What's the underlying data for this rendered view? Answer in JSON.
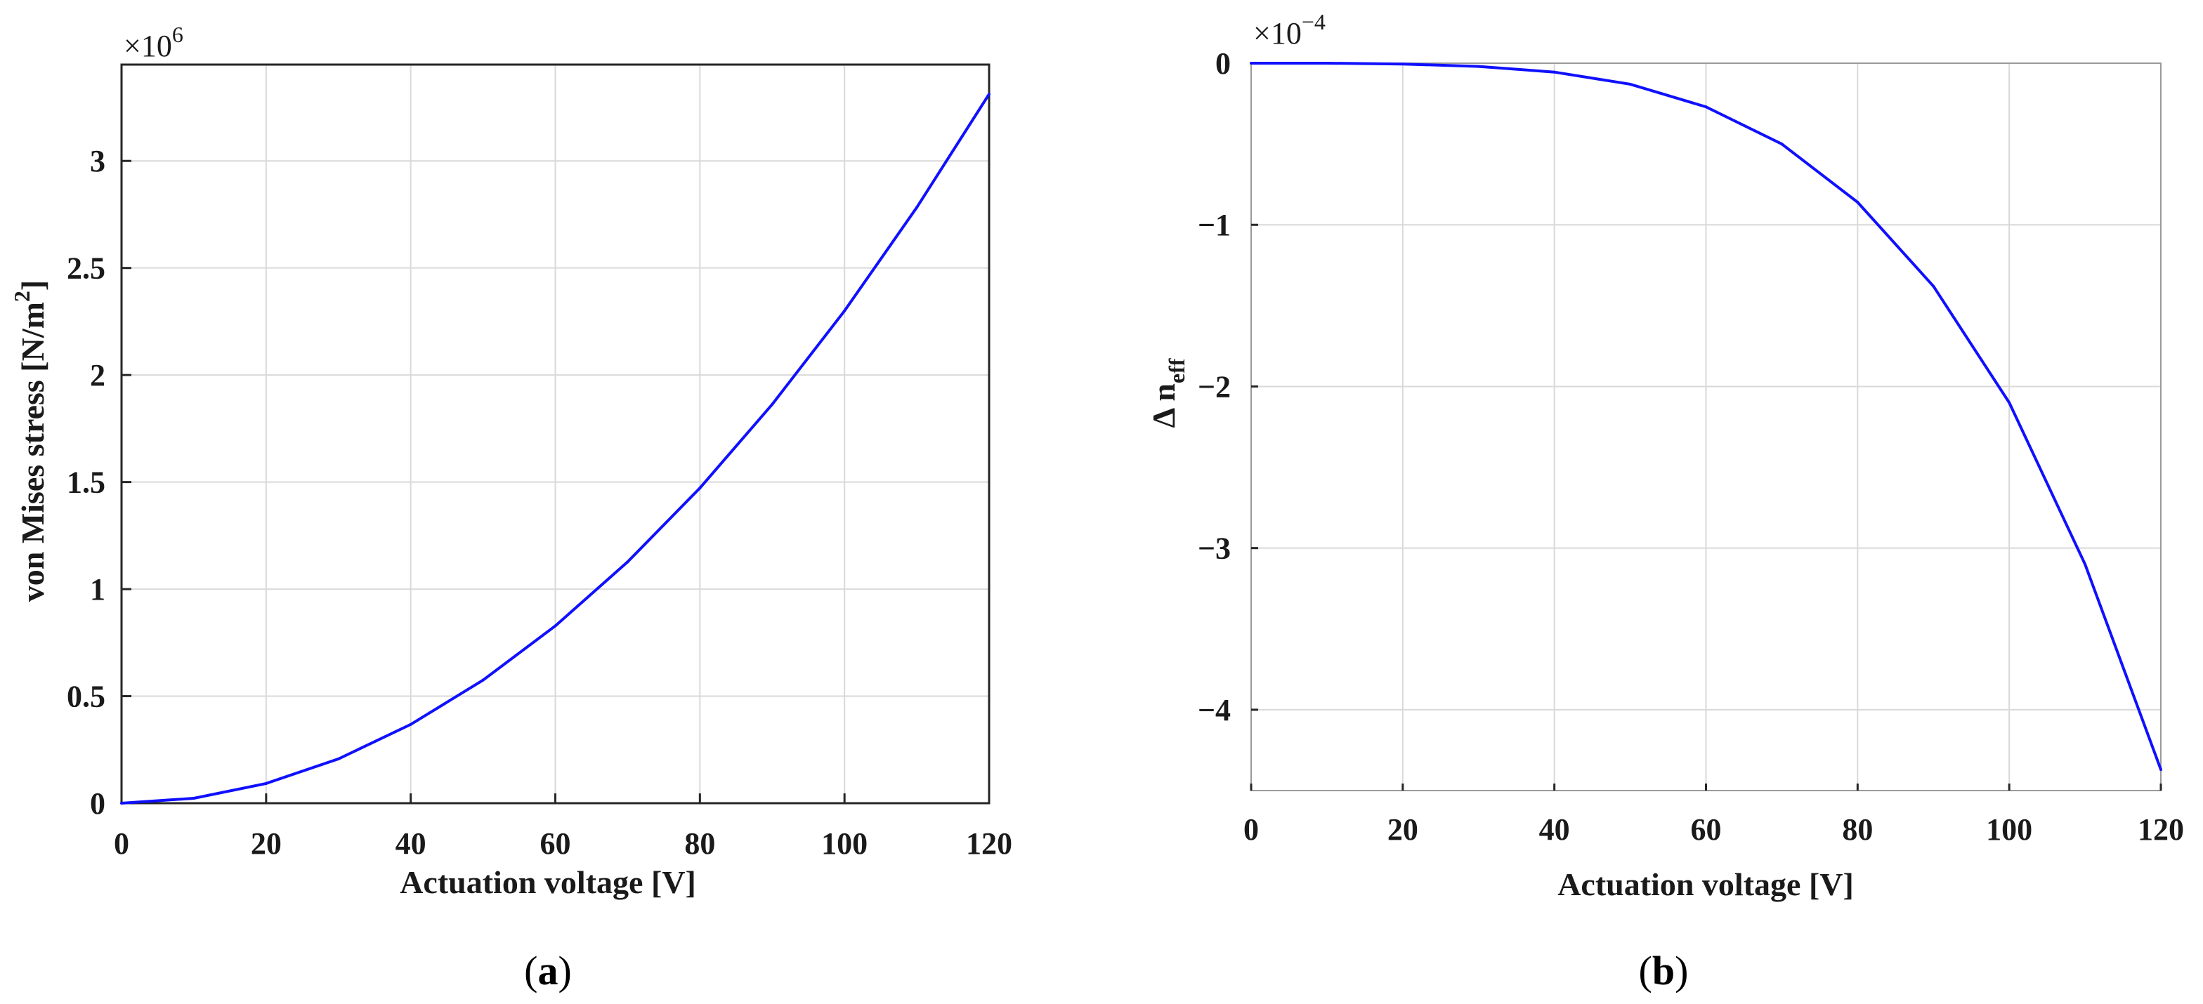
{
  "colors": {
    "series": "#1010ff",
    "axis": "#262626",
    "grid": "#d9d9d9"
  },
  "chart_data": [
    {
      "type": "line",
      "panel_label": "a",
      "xlabel": "Actuation voltage [V]",
      "ylabel_main": "von Mises stress [N/m",
      "ylabel_sup": "2",
      "ylabel_end": "]",
      "exponent_label": {
        "base": "×10",
        "power": "6"
      },
      "xlim": [
        0,
        120
      ],
      "ylim": [
        0,
        3.45
      ],
      "xticks": [
        0,
        20,
        40,
        60,
        80,
        100,
        120
      ],
      "xtick_labels": [
        "0",
        "20",
        "40",
        "60",
        "80",
        "100",
        "120"
      ],
      "yticks": [
        0,
        0.5,
        1,
        1.5,
        2,
        2.5,
        3
      ],
      "ytick_labels": [
        "0",
        "0.5",
        "1",
        "1.5",
        "2",
        "2.5",
        "3"
      ],
      "grid": true,
      "series": [
        {
          "x": [
            0,
            10,
            20,
            30,
            40,
            50,
            60,
            70,
            80,
            90,
            100,
            110,
            120
          ],
          "y": [
            0,
            0.023,
            0.092,
            0.207,
            0.368,
            0.575,
            0.828,
            1.127,
            1.472,
            1.863,
            2.3,
            2.783,
            3.312
          ]
        }
      ]
    },
    {
      "type": "line",
      "panel_label": "b",
      "xlabel": "Actuation voltage [V]",
      "ylabel_main": "Δ n",
      "ylabel_sub": "eff",
      "exponent_label": {
        "base": "×10",
        "power": "−4"
      },
      "xlim": [
        0,
        120
      ],
      "ylim": [
        -4.5,
        0
      ],
      "xticks": [
        0,
        20,
        40,
        60,
        80,
        100,
        120
      ],
      "xtick_labels": [
        "0",
        "20",
        "40",
        "60",
        "80",
        "100",
        "120"
      ],
      "yticks": [
        0,
        -1,
        -2,
        -3,
        -4
      ],
      "ytick_labels": [
        "0",
        "−1",
        "−2",
        "−3",
        "−4"
      ],
      "grid": true,
      "series": [
        {
          "x": [
            0,
            10,
            20,
            30,
            40,
            50,
            60,
            70,
            80,
            90,
            100,
            110,
            120
          ],
          "y": [
            0,
            0,
            -0.005,
            -0.02,
            -0.055,
            -0.13,
            -0.27,
            -0.5,
            -0.86,
            -1.38,
            -2.1,
            -3.1,
            -4.37
          ]
        }
      ]
    }
  ]
}
